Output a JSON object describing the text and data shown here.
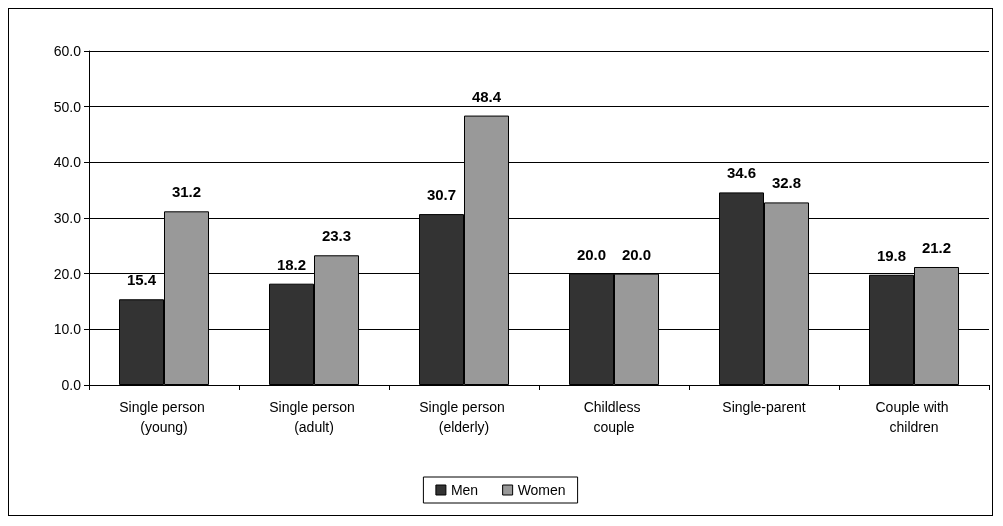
{
  "chart_data": {
    "type": "bar",
    "categories": [
      "Single person (young)",
      "Single person (adult)",
      "Single person (elderly)",
      "Childless couple",
      "Single-parent",
      "Couple with children"
    ],
    "series": [
      {
        "name": "Men",
        "color": "#333333",
        "values": [
          15.4,
          18.2,
          30.7,
          20.0,
          34.6,
          19.8
        ],
        "value_labels": [
          "15.4",
          "18.2",
          "30.7",
          "20.0",
          "34.6",
          "19.8"
        ]
      },
      {
        "name": "Women",
        "color": "#999999",
        "values": [
          31.2,
          23.3,
          48.4,
          20.0,
          32.8,
          21.2
        ],
        "value_labels": [
          "31.2",
          "23.3",
          "48.4",
          "20.0",
          "32.8",
          "21.2"
        ]
      }
    ],
    "ylim": [
      0,
      60
    ],
    "yticks": [
      {
        "value": 0,
        "label": "0.0"
      },
      {
        "value": 10,
        "label": "10.0"
      },
      {
        "value": 20,
        "label": "20.0"
      },
      {
        "value": 30,
        "label": "30.0"
      },
      {
        "value": 40,
        "label": "40.0"
      },
      {
        "value": 50,
        "label": "50.0"
      },
      {
        "value": 60,
        "label": "60.0"
      }
    ],
    "grid": "y",
    "legend": "bottom"
  }
}
